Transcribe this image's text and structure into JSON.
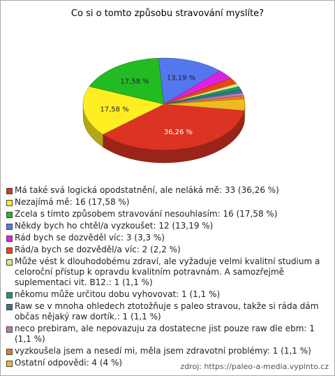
{
  "chart_data": {
    "type": "pie",
    "title": "Co si o tomto způsobu stravování myslíte?",
    "categories": [
      "Má také svá logická opodstatnění, ale neláká mě: 33 (36,26 %)",
      "Nezajímá mě: 16 (17,58 %)",
      "Zcela s tímto způsobem stravování nesouhlasím: 16 (17,58 %)",
      "Někdy bych ho chtěl/a vyzkoušet: 12 (13,19 %)",
      "Rád bych se dozvěděl víc: 3 (3,3 %)",
      "Rád/a bych se dozvěděl/a víc: 2 (2,2 %)",
      "Může vést k dlouhodobému zdraví, ale vyžaduje velmi kvalitní studium a celoroční přístup k opravdu kvalitním potravnám. A samozřejmě suplementaci vit. B12.: 1 (1,1 %)",
      "někomu může určitou dobu vyhovovat: 1 (1,1 %)",
      "Raw se v mnoha ohledech ztotožňuje s paleo stravou, takže si ráda dám občas nějaký raw dortík.: 1 (1,1 %)",
      "neco prebiram, ale nepovazuju za dostatecne jist pouze raw dle ebm: 1 (1,1 %)",
      "vyzkoušela jsem a nesedí mi, měla jsem zdravotní problémy: 1 (1,1 %)",
      "Ostatní odpovědi: 4 (4 %)"
    ],
    "values": [
      36.26,
      17.58,
      17.58,
      13.19,
      3.3,
      2.2,
      1.1,
      1.1,
      1.1,
      1.1,
      1.1,
      4
    ],
    "value_labels": [
      "36,26 %",
      "17,58 %",
      "17,58 %",
      "13,19 %",
      null,
      null,
      null,
      null,
      null,
      null,
      null,
      null
    ],
    "colors": [
      "#dd3322",
      "#ffee22",
      "#22bb22",
      "#5577ee",
      "#dd22dd",
      "#ee4411",
      "#ccf088",
      "#229966",
      "#337788",
      "#bb77bb",
      "#ee7722",
      "#eebb22"
    ],
    "source": "zdroj: https://paleo-a-media.vyplnto.cz"
  }
}
